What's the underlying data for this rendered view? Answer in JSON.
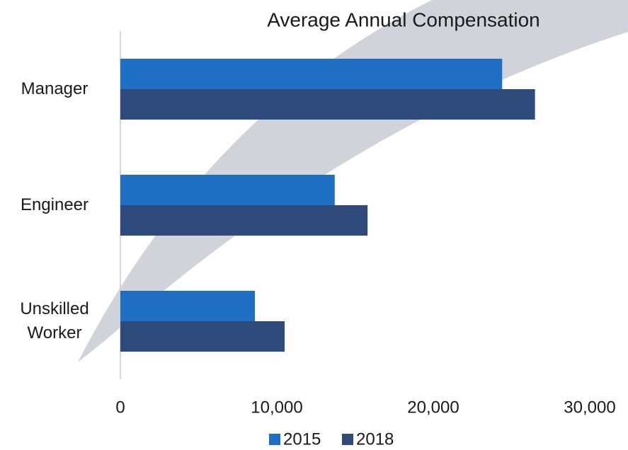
{
  "chart_data": {
    "type": "bar",
    "orientation": "horizontal",
    "title": "Average Annual Compensation",
    "categories": [
      "Manager",
      "Engineer",
      "Unskilled Worker"
    ],
    "series": [
      {
        "name": "2015",
        "color": "#1f6fc5",
        "values": [
          24400,
          13700,
          8600
        ]
      },
      {
        "name": "2018",
        "color": "#2f4b7c",
        "values": [
          26500,
          15800,
          10500
        ]
      }
    ],
    "xlim": [
      0,
      30000
    ],
    "xticks": [
      0,
      {
        "value": 10000,
        "label": "10,000"
      },
      {
        "value": 20000,
        "label": "20,000"
      },
      {
        "value": 30000,
        "label": "30,000"
      }
    ],
    "legend": "bottom"
  }
}
